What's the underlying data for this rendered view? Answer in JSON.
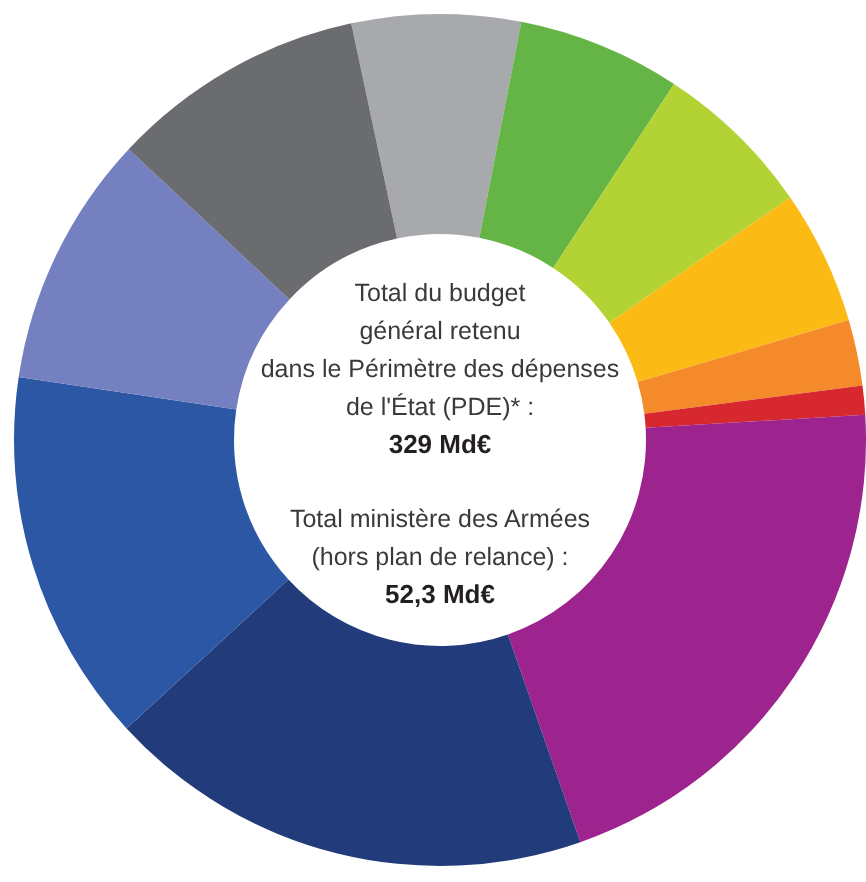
{
  "chart_data": {
    "type": "donut",
    "categories": [
      null,
      null,
      null,
      null,
      null,
      null,
      null,
      null,
      null,
      null,
      null
    ],
    "values": [
      6.4,
      6.2,
      6.1,
      5.1,
      2.5,
      1.1,
      20.6,
      18.5,
      14.2,
      9.6,
      9.7
    ],
    "colors": [
      "#a7a9ac",
      "#65b446",
      "#b3d334",
      "#fbbb14",
      "#f58a2b",
      "#d7282f",
      "#9d248e",
      "#223b7a",
      "#2c57a5",
      "#7480bf",
      "#6b6c70"
    ],
    "annotations": [
      "Total du budget\ngénéral retenu\ndans le Périmètre des dépenses\nde l'État (PDE)* :",
      "329 Md€",
      "Total ministère des Armées\n(hors plan de relance) :",
      "52,3 Md€"
    ]
  }
}
